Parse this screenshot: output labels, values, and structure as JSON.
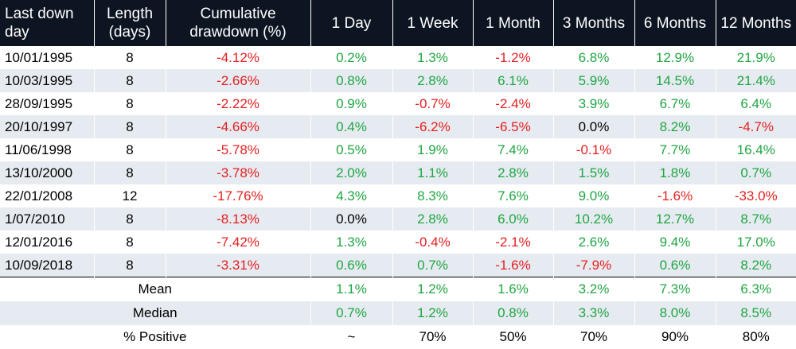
{
  "colors": {
    "header_bg": "#0d1522",
    "row_alt": "#e6ebf1",
    "positive": "#1fa542",
    "negative": "#e41f1f"
  },
  "headers": [
    "Last down day",
    "Length (days)",
    "Cumulative drawdown (%)",
    "1 Day",
    "1 Week",
    "1 Month",
    "3 Months",
    "6 Months",
    "12 Months"
  ],
  "rows": [
    {
      "date": "10/01/1995",
      "length": "8",
      "drawdown": "-4.12%",
      "d1": "0.2%",
      "w1": "1.3%",
      "m1": "-1.2%",
      "m3": "6.8%",
      "m6": "12.9%",
      "m12": "21.9%"
    },
    {
      "date": "10/03/1995",
      "length": "8",
      "drawdown": "-2.66%",
      "d1": "0.8%",
      "w1": "2.8%",
      "m1": "6.1%",
      "m3": "5.9%",
      "m6": "14.5%",
      "m12": "21.4%"
    },
    {
      "date": "28/09/1995",
      "length": "8",
      "drawdown": "-2.22%",
      "d1": "0.9%",
      "w1": "-0.7%",
      "m1": "-2.4%",
      "m3": "3.9%",
      "m6": "6.7%",
      "m12": "6.4%"
    },
    {
      "date": "20/10/1997",
      "length": "8",
      "drawdown": "-4.66%",
      "d1": "0.4%",
      "w1": "-6.2%",
      "m1": "-6.5%",
      "m3": "0.0%",
      "m6": "8.2%",
      "m12": "-4.7%"
    },
    {
      "date": "11/06/1998",
      "length": "8",
      "drawdown": "-5.78%",
      "d1": "0.5%",
      "w1": "1.9%",
      "m1": "7.4%",
      "m3": "-0.1%",
      "m6": "7.7%",
      "m12": "16.4%"
    },
    {
      "date": "13/10/2000",
      "length": "8",
      "drawdown": "-3.78%",
      "d1": "2.0%",
      "w1": "1.1%",
      "m1": "2.8%",
      "m3": "1.5%",
      "m6": "1.8%",
      "m12": "0.7%"
    },
    {
      "date": "22/01/2008",
      "length": "12",
      "drawdown": "-17.76%",
      "d1": "4.3%",
      "w1": "8.3%",
      "m1": "7.6%",
      "m3": "9.0%",
      "m6": "-1.6%",
      "m12": "-33.0%"
    },
    {
      "date": "1/07/2010",
      "length": "8",
      "drawdown": "-8.13%",
      "d1": "0.0%",
      "w1": "2.8%",
      "m1": "6.0%",
      "m3": "10.2%",
      "m6": "12.7%",
      "m12": "8.7%"
    },
    {
      "date": "12/01/2016",
      "length": "8",
      "drawdown": "-7.42%",
      "d1": "1.3%",
      "w1": "-0.4%",
      "m1": "-2.1%",
      "m3": "2.6%",
      "m6": "9.4%",
      "m12": "17.0%"
    },
    {
      "date": "10/09/2018",
      "length": "8",
      "drawdown": "-3.31%",
      "d1": "0.6%",
      "w1": "0.7%",
      "m1": "-1.6%",
      "m3": "-7.9%",
      "m6": "0.6%",
      "m12": "8.2%"
    }
  ],
  "summary": [
    {
      "label": "Mean",
      "d1": "1.1%",
      "w1": "1.2%",
      "m1": "1.6%",
      "m3": "3.2%",
      "m6": "7.3%",
      "m12": "6.3%"
    },
    {
      "label": "Median",
      "d1": "0.7%",
      "w1": "1.2%",
      "m1": "0.8%",
      "m3": "3.3%",
      "m6": "8.0%",
      "m12": "8.5%"
    },
    {
      "label": "% Positive",
      "d1": "~",
      "w1": "70%",
      "m1": "50%",
      "m3": "70%",
      "m6": "90%",
      "m12": "80%"
    }
  ]
}
